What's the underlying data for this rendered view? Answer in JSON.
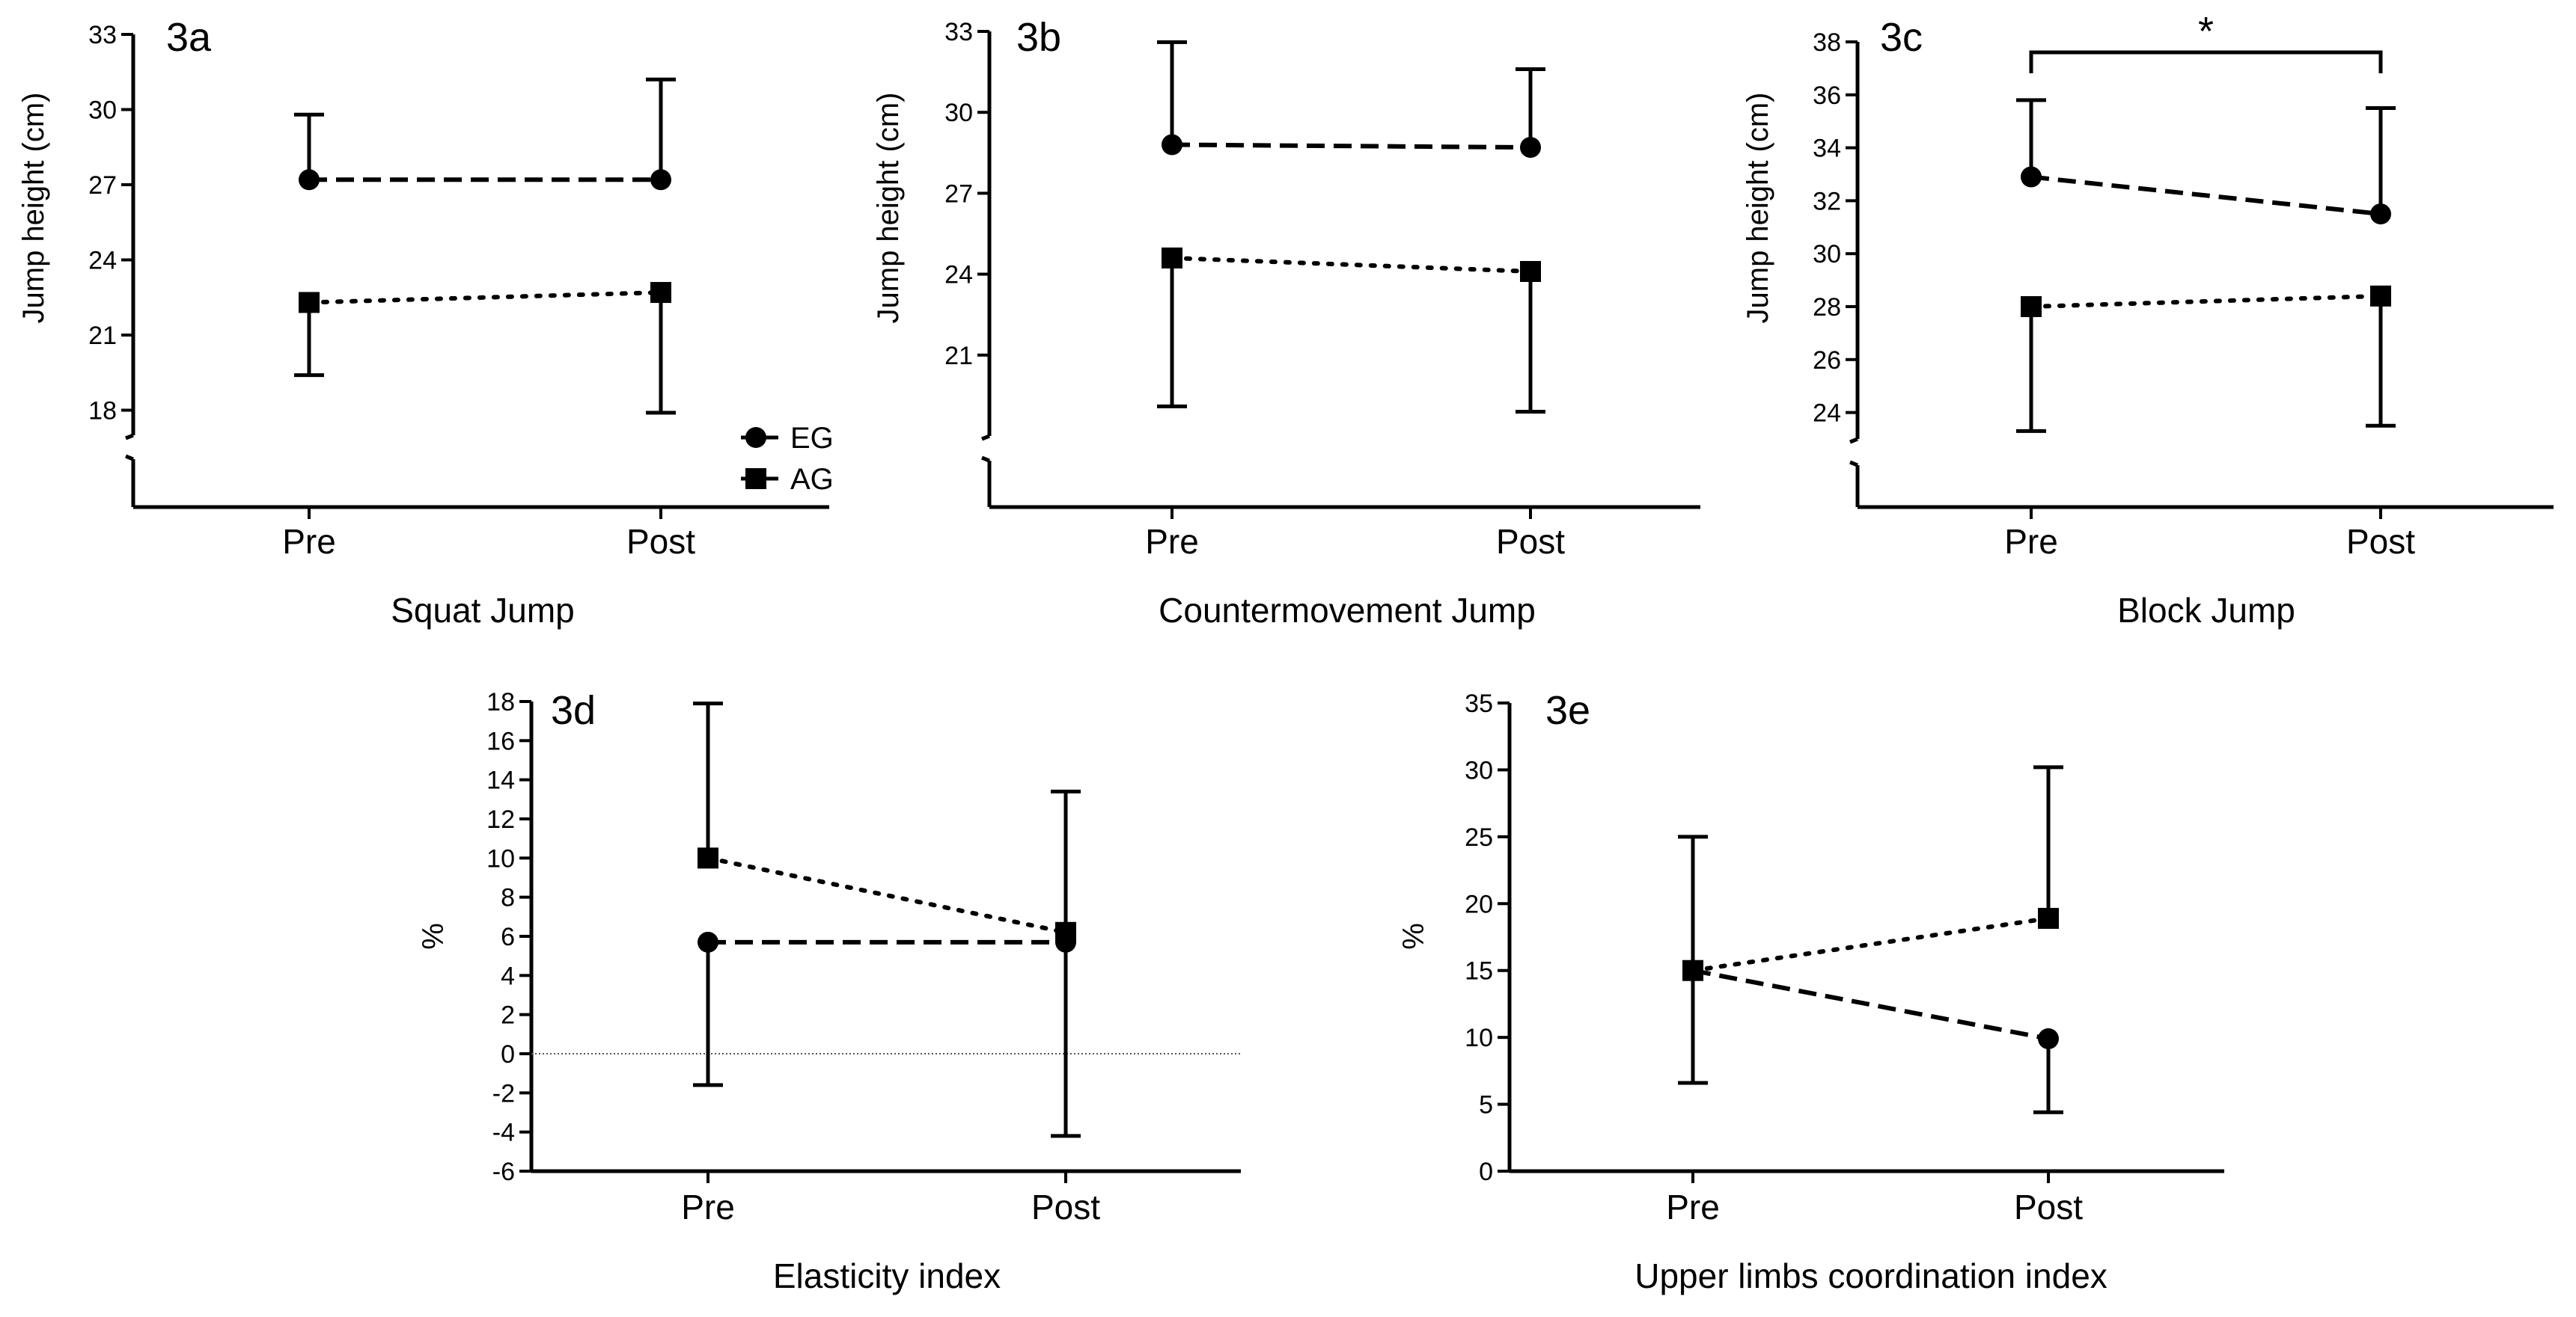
{
  "figure": {
    "legend": [
      {
        "label": "EG",
        "marker": "circle",
        "line": "dashed"
      },
      {
        "label": "AG",
        "marker": "square",
        "line": "dotted"
      }
    ]
  },
  "chart_data": [
    {
      "type": "line",
      "label": "3a",
      "title": "Squat Jump",
      "xlabel": "Squat Jump",
      "ylabel": "Jump height (cm)",
      "categories": [
        "Pre",
        "Post"
      ],
      "ylim": [
        17,
        33
      ],
      "yticks": [
        18,
        21,
        24,
        27,
        30,
        33
      ],
      "axis_break": true,
      "series": [
        {
          "name": "EG",
          "values": [
            27.2,
            27.2
          ],
          "error_upper": [
            29.8,
            31.2
          ],
          "error_lower": [
            null,
            null
          ]
        },
        {
          "name": "AG",
          "values": [
            22.3,
            22.7
          ],
          "error_upper": [
            null,
            null
          ],
          "error_lower": [
            19.4,
            17.9
          ]
        }
      ],
      "legend_position": "bottom-right"
    },
    {
      "type": "line",
      "label": "3b",
      "title": "Countermovement Jump",
      "xlabel": "Countermovement Jump",
      "ylabel": "Jump height (cm)",
      "categories": [
        "Pre",
        "Post"
      ],
      "ylim": [
        18,
        33
      ],
      "yticks": [
        21,
        24,
        27,
        30,
        33
      ],
      "axis_break": true,
      "series": [
        {
          "name": "EG",
          "values": [
            28.8,
            28.7
          ],
          "error_upper": [
            32.6,
            31.6
          ],
          "error_lower": [
            null,
            null
          ]
        },
        {
          "name": "AG",
          "values": [
            24.6,
            24.1
          ],
          "error_upper": [
            null,
            null
          ],
          "error_lower": [
            19.1,
            18.9
          ]
        }
      ]
    },
    {
      "type": "line",
      "label": "3c",
      "title": "Block Jump",
      "xlabel": "Block Jump",
      "ylabel": "Jump height (cm)",
      "categories": [
        "Pre",
        "Post"
      ],
      "ylim": [
        23,
        38
      ],
      "yticks": [
        24,
        26,
        28,
        30,
        32,
        34,
        36,
        38
      ],
      "axis_break": true,
      "significance": {
        "label": "*",
        "from": "Pre",
        "to": "Post"
      },
      "series": [
        {
          "name": "EG",
          "values": [
            32.9,
            31.5
          ],
          "error_upper": [
            35.8,
            35.5
          ],
          "error_lower": [
            null,
            null
          ]
        },
        {
          "name": "AG",
          "values": [
            28.0,
            28.4
          ],
          "error_upper": [
            null,
            null
          ],
          "error_lower": [
            23.3,
            23.5
          ]
        }
      ]
    },
    {
      "type": "line",
      "label": "3d",
      "title": "Elasticity index",
      "xlabel": "Elasticity index",
      "ylabel": "%",
      "categories": [
        "Pre",
        "Post"
      ],
      "ylim": [
        -6,
        18
      ],
      "yticks": [
        -6,
        -4,
        -2,
        0,
        2,
        4,
        6,
        8,
        10,
        12,
        14,
        16,
        18
      ],
      "zero_line": true,
      "series": [
        {
          "name": "EG",
          "values": [
            5.7,
            5.7
          ],
          "error_upper": [
            null,
            null
          ],
          "error_lower": [
            -1.6,
            -4.2
          ]
        },
        {
          "name": "AG",
          "values": [
            10.0,
            6.2
          ],
          "error_upper": [
            17.9,
            13.4
          ],
          "error_lower": [
            null,
            null
          ]
        }
      ]
    },
    {
      "type": "line",
      "label": "3e",
      "title": "Upper limbs coordination index",
      "xlabel": "Upper limbs coordination index",
      "ylabel": "%",
      "categories": [
        "Pre",
        "Post"
      ],
      "ylim": [
        0,
        35
      ],
      "yticks": [
        0,
        5,
        10,
        15,
        20,
        25,
        30,
        35
      ],
      "series": [
        {
          "name": "EG",
          "values": [
            15.0,
            9.9
          ],
          "error_upper": [
            null,
            null
          ],
          "error_lower": [
            6.6,
            4.4
          ]
        },
        {
          "name": "AG",
          "values": [
            15.0,
            18.9
          ],
          "error_upper": [
            25.0,
            30.2
          ],
          "error_lower": [
            null,
            null
          ]
        }
      ]
    }
  ]
}
